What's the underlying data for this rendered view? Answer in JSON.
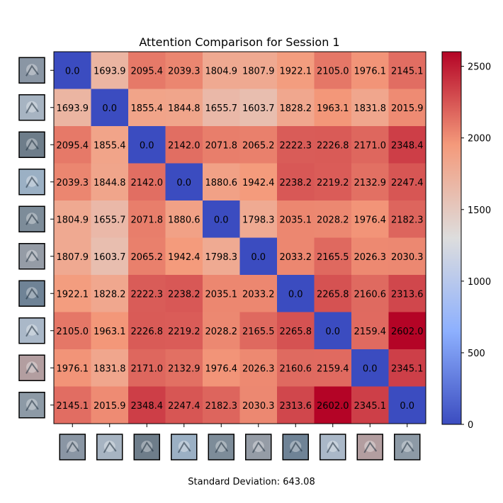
{
  "chart_data": {
    "type": "heatmap",
    "title": "Attention Comparison for Session 1",
    "footer": "Standard Deviation: 643.08",
    "colormap": "coolwarm",
    "vmin": 0,
    "vmax": 2602.0,
    "colorbar_ticks": [
      0,
      500,
      1000,
      1500,
      2000,
      2500
    ],
    "row_labels": [
      "thumb-1",
      "thumb-2",
      "thumb-3",
      "thumb-4",
      "thumb-5",
      "thumb-6",
      "thumb-7",
      "thumb-8",
      "thumb-9",
      "thumb-10"
    ],
    "col_labels": [
      "thumb-1",
      "thumb-2",
      "thumb-3",
      "thumb-4",
      "thumb-5",
      "thumb-6",
      "thumb-7",
      "thumb-8",
      "thumb-9",
      "thumb-10"
    ],
    "thumbnail_tints": [
      "#8a96a4",
      "#a7b4c2",
      "#6e7d8a",
      "#9bb0c4",
      "#7d8c99",
      "#959ca6",
      "#6f8396",
      "#aab8c8",
      "#b39ea0",
      "#8d9aa6"
    ],
    "values": [
      [
        0.0,
        1693.9,
        2095.4,
        2039.3,
        1804.9,
        1807.9,
        1922.1,
        2105.0,
        1976.1,
        2145.1
      ],
      [
        1693.9,
        0.0,
        1855.4,
        1844.8,
        1655.7,
        1603.7,
        1828.2,
        1963.1,
        1831.8,
        2015.9
      ],
      [
        2095.4,
        1855.4,
        0.0,
        2142.0,
        2071.8,
        2065.2,
        2222.3,
        2226.8,
        2171.0,
        2348.4
      ],
      [
        2039.3,
        1844.8,
        2142.0,
        0.0,
        1880.6,
        1942.4,
        2238.2,
        2219.2,
        2132.9,
        2247.4
      ],
      [
        1804.9,
        1655.7,
        2071.8,
        1880.6,
        0.0,
        1798.3,
        2035.1,
        2028.2,
        1976.4,
        2182.3
      ],
      [
        1807.9,
        1603.7,
        2065.2,
        1942.4,
        1798.3,
        0.0,
        2033.2,
        2165.5,
        2026.3,
        2030.3
      ],
      [
        1922.1,
        1828.2,
        2222.3,
        2238.2,
        2035.1,
        2033.2,
        0.0,
        2265.8,
        2160.6,
        2313.6
      ],
      [
        2105.0,
        1963.1,
        2226.8,
        2219.2,
        2028.2,
        2165.5,
        2265.8,
        0.0,
        2159.4,
        2602.0
      ],
      [
        1976.1,
        1831.8,
        2171.0,
        2132.9,
        1976.4,
        2026.3,
        2160.6,
        2159.4,
        0.0,
        2345.1
      ],
      [
        2145.1,
        2015.9,
        2348.4,
        2247.4,
        2182.3,
        2030.3,
        2313.6,
        2602.0,
        2345.1,
        0.0
      ]
    ]
  }
}
